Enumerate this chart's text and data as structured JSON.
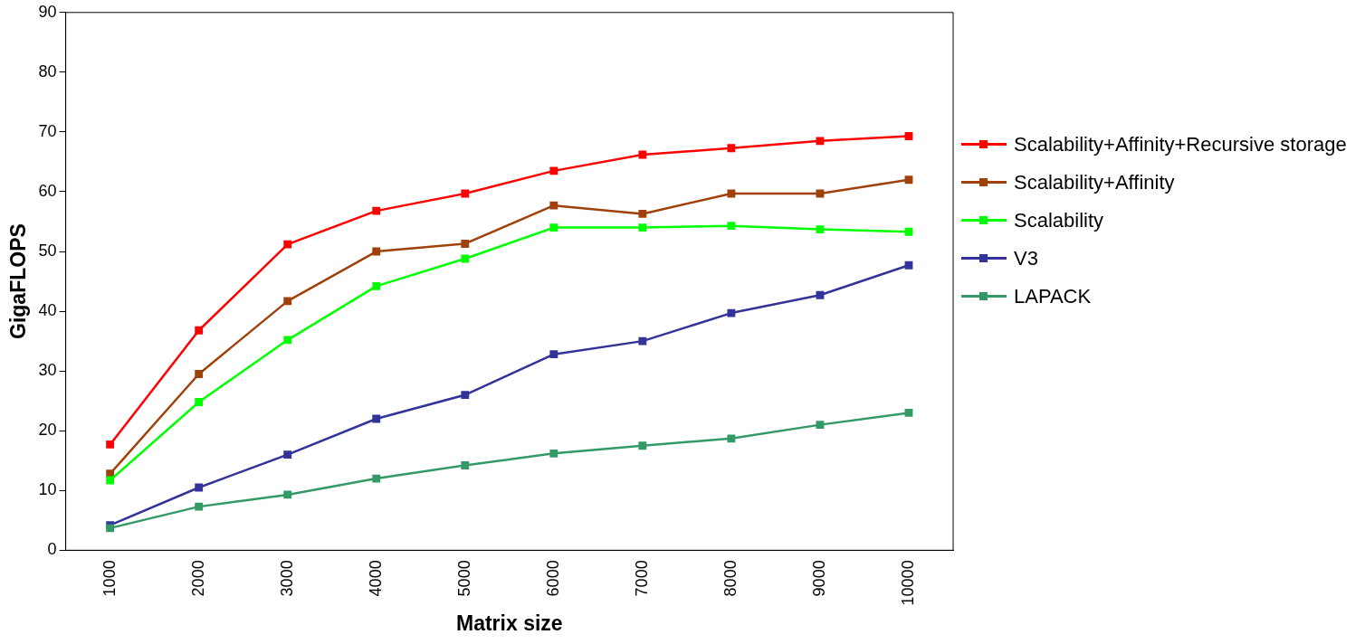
{
  "chart_data": {
    "type": "line",
    "xlabel": "Matrix size",
    "ylabel": "GigaFLOPS",
    "categories": [
      "1000",
      "2000",
      "3000",
      "4000",
      "5000",
      "6000",
      "7000",
      "8000",
      "9000",
      "10000"
    ],
    "ylim": [
      0,
      90
    ],
    "yticks": [
      0,
      10,
      20,
      30,
      40,
      50,
      60,
      70,
      80,
      90
    ],
    "grid": false,
    "legend": "right",
    "marker": "square",
    "line_style": "solid",
    "series": [
      {
        "name": "Scalability+Affinity+Recursive storage",
        "color": "#ff0000",
        "values": [
          17.7,
          36.8,
          51.2,
          56.8,
          59.7,
          63.5,
          66.2,
          67.3,
          68.5,
          69.3
        ]
      },
      {
        "name": "Scalability+Affinity",
        "color": "#a0400a",
        "values": [
          12.8,
          29.5,
          41.7,
          50,
          51.3,
          57.7,
          56.3,
          59.7,
          59.7,
          62
        ]
      },
      {
        "name": "Scalability",
        "color": "#00ff00",
        "values": [
          11.7,
          24.8,
          35.2,
          44.2,
          48.8,
          54,
          54,
          54.3,
          53.7,
          53.3
        ]
      },
      {
        "name": "V3",
        "color": "#333399",
        "values": [
          4.2,
          10.5,
          16,
          22,
          26,
          32.8,
          35,
          39.7,
          42.7,
          47.7
        ]
      },
      {
        "name": "LAPACK",
        "color": "#339966",
        "values": [
          3.7,
          7.3,
          9.3,
          12,
          14.2,
          16.2,
          17.5,
          18.7,
          21,
          23
        ]
      }
    ]
  }
}
